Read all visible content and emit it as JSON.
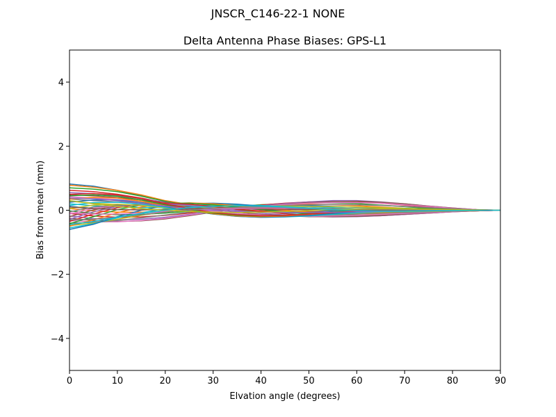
{
  "suptitle": "JNSCR_C146-22-1 NONE",
  "chart_data": {
    "type": "line",
    "title": "Delta Antenna Phase Biases: GPS-L1",
    "xlabel": "Elvation angle (degrees)",
    "ylabel": "Bias from mean (mm)",
    "xlim": [
      0,
      90
    ],
    "ylim": [
      -5,
      5
    ],
    "xticks": [
      "0",
      "10",
      "20",
      "30",
      "40",
      "50",
      "60",
      "70",
      "80",
      "90"
    ],
    "yticks": [
      "−4",
      "−2",
      "0",
      "2",
      "4"
    ],
    "ytick_values": [
      -4,
      -2,
      0,
      2,
      4
    ],
    "grid": false,
    "x": [
      0,
      5,
      10,
      15,
      20,
      25,
      30,
      35,
      40,
      45,
      50,
      55,
      60,
      65,
      70,
      75,
      80,
      85,
      90
    ],
    "colors": [
      "#1f77b4",
      "#ff7f0e",
      "#2ca02c",
      "#d62728",
      "#9467bd",
      "#8c564b",
      "#e377c2",
      "#7f7f7f",
      "#bcbd22",
      "#17becf"
    ],
    "series": [
      {
        "values": [
          0.82,
          0.75,
          0.62,
          0.45,
          0.28,
          0.15,
          0.05,
          0.0,
          -0.05,
          -0.08,
          -0.1,
          -0.12,
          -0.12,
          -0.1,
          -0.08,
          -0.06,
          -0.04,
          -0.02,
          0.0
        ]
      },
      {
        "values": [
          0.78,
          0.72,
          0.62,
          0.48,
          0.3,
          0.18,
          0.08,
          0.02,
          -0.03,
          -0.06,
          -0.08,
          -0.09,
          -0.09,
          -0.08,
          -0.06,
          -0.04,
          -0.03,
          -0.01,
          0.0
        ]
      },
      {
        "values": [
          0.7,
          0.66,
          0.58,
          0.44,
          0.28,
          0.15,
          0.06,
          0.0,
          -0.04,
          -0.07,
          -0.09,
          -0.1,
          -0.1,
          -0.09,
          -0.07,
          -0.05,
          -0.03,
          -0.01,
          0.0
        ]
      },
      {
        "values": [
          0.62,
          0.58,
          0.5,
          0.38,
          0.24,
          0.14,
          0.06,
          0.02,
          -0.02,
          -0.05,
          -0.08,
          -0.1,
          -0.11,
          -0.1,
          -0.08,
          -0.06,
          -0.04,
          -0.02,
          0.0
        ]
      },
      {
        "values": [
          0.55,
          0.52,
          0.46,
          0.36,
          0.25,
          0.16,
          0.1,
          0.06,
          0.02,
          -0.02,
          -0.05,
          -0.07,
          -0.08,
          -0.07,
          -0.06,
          -0.05,
          -0.03,
          -0.01,
          0.0
        ]
      },
      {
        "values": [
          0.48,
          0.45,
          0.4,
          0.32,
          0.24,
          0.17,
          0.12,
          0.08,
          0.04,
          0.0,
          -0.04,
          -0.06,
          -0.07,
          -0.07,
          -0.06,
          -0.04,
          -0.03,
          -0.01,
          0.0
        ]
      },
      {
        "values": [
          0.42,
          0.38,
          0.33,
          0.28,
          0.22,
          0.17,
          0.14,
          0.11,
          0.08,
          0.04,
          0.0,
          -0.03,
          -0.05,
          -0.05,
          -0.05,
          -0.04,
          -0.02,
          -0.01,
          0.0
        ]
      },
      {
        "values": [
          0.35,
          0.3,
          0.26,
          0.23,
          0.2,
          0.17,
          0.15,
          0.13,
          0.1,
          0.07,
          0.03,
          0.0,
          -0.02,
          -0.03,
          -0.03,
          -0.02,
          -0.02,
          -0.01,
          0.0
        ]
      },
      {
        "values": [
          0.28,
          0.22,
          0.18,
          0.16,
          0.15,
          0.15,
          0.15,
          0.14,
          0.12,
          0.1,
          0.07,
          0.04,
          0.01,
          -0.01,
          -0.02,
          -0.02,
          -0.01,
          -0.01,
          0.0
        ]
      },
      {
        "values": [
          0.2,
          0.14,
          0.1,
          0.08,
          0.09,
          0.11,
          0.13,
          0.14,
          0.14,
          0.13,
          0.11,
          0.08,
          0.05,
          0.02,
          0.0,
          -0.01,
          -0.01,
          0.0,
          0.0
        ]
      },
      {
        "values": [
          0.12,
          0.06,
          0.02,
          0.01,
          0.03,
          0.07,
          0.11,
          0.14,
          0.16,
          0.16,
          0.15,
          0.12,
          0.09,
          0.06,
          0.03,
          0.01,
          0.0,
          0.0,
          0.0
        ]
      },
      {
        "values": [
          0.05,
          -0.02,
          -0.06,
          -0.06,
          -0.03,
          0.02,
          0.08,
          0.13,
          0.17,
          0.19,
          0.19,
          0.17,
          0.14,
          0.1,
          0.06,
          0.03,
          0.01,
          0.0,
          0.0
        ]
      },
      {
        "values": [
          -0.02,
          -0.1,
          -0.14,
          -0.13,
          -0.09,
          -0.03,
          0.04,
          0.11,
          0.17,
          0.21,
          0.23,
          0.23,
          0.21,
          0.16,
          0.11,
          0.06,
          0.03,
          0.01,
          0.0
        ]
      },
      {
        "values": [
          -0.1,
          -0.18,
          -0.22,
          -0.21,
          -0.16,
          -0.09,
          0.0,
          0.09,
          0.16,
          0.22,
          0.26,
          0.28,
          0.27,
          0.22,
          0.16,
          0.1,
          0.05,
          0.02,
          0.0
        ]
      },
      {
        "values": [
          -0.18,
          -0.26,
          -0.3,
          -0.28,
          -0.22,
          -0.13,
          -0.03,
          0.06,
          0.14,
          0.21,
          0.26,
          0.3,
          0.3,
          0.26,
          0.2,
          0.13,
          0.07,
          0.02,
          0.0
        ]
      },
      {
        "values": [
          -0.25,
          -0.32,
          -0.35,
          -0.33,
          -0.27,
          -0.17,
          -0.06,
          0.04,
          0.12,
          0.19,
          0.24,
          0.27,
          0.28,
          0.25,
          0.2,
          0.13,
          0.07,
          0.02,
          0.0
        ]
      },
      {
        "values": [
          -0.32,
          -0.36,
          -0.36,
          -0.32,
          -0.25,
          -0.15,
          -0.05,
          0.05,
          0.12,
          0.18,
          0.22,
          0.24,
          0.24,
          0.22,
          0.17,
          0.12,
          0.06,
          0.02,
          0.0
        ]
      },
      {
        "values": [
          -0.4,
          -0.38,
          -0.32,
          -0.24,
          -0.15,
          -0.06,
          0.02,
          0.08,
          0.12,
          0.15,
          0.17,
          0.18,
          0.17,
          0.15,
          0.12,
          0.08,
          0.04,
          0.01,
          0.0
        ]
      },
      {
        "values": [
          -0.48,
          -0.4,
          -0.28,
          -0.16,
          -0.05,
          0.04,
          0.1,
          0.13,
          0.14,
          0.13,
          0.12,
          0.11,
          0.1,
          0.08,
          0.06,
          0.04,
          0.02,
          0.01,
          0.0
        ]
      },
      {
        "values": [
          -0.55,
          -0.42,
          -0.24,
          -0.08,
          0.05,
          0.13,
          0.17,
          0.17,
          0.15,
          0.11,
          0.07,
          0.04,
          0.02,
          0.01,
          0.0,
          0.0,
          0.0,
          0.0,
          0.0
        ]
      },
      {
        "values": [
          -0.6,
          -0.44,
          -0.2,
          0.0,
          0.14,
          0.21,
          0.22,
          0.19,
          0.13,
          0.07,
          0.01,
          -0.03,
          -0.05,
          -0.05,
          -0.04,
          -0.03,
          -0.02,
          -0.01,
          0.0
        ]
      },
      {
        "values": [
          -0.5,
          -0.3,
          -0.08,
          0.1,
          0.2,
          0.23,
          0.2,
          0.14,
          0.07,
          0.0,
          -0.06,
          -0.1,
          -0.12,
          -0.11,
          -0.09,
          -0.06,
          -0.03,
          -0.01,
          0.0
        ]
      },
      {
        "values": [
          -0.42,
          -0.2,
          0.02,
          0.16,
          0.22,
          0.22,
          0.17,
          0.1,
          0.02,
          -0.05,
          -0.11,
          -0.15,
          -0.16,
          -0.15,
          -0.12,
          -0.08,
          -0.04,
          -0.01,
          0.0
        ]
      },
      {
        "values": [
          -0.35,
          -0.12,
          0.08,
          0.19,
          0.22,
          0.19,
          0.12,
          0.04,
          -0.04,
          -0.11,
          -0.16,
          -0.19,
          -0.19,
          -0.17,
          -0.13,
          -0.09,
          -0.05,
          -0.02,
          0.0
        ]
      },
      {
        "values": [
          -0.28,
          -0.05,
          0.12,
          0.2,
          0.2,
          0.15,
          0.07,
          -0.01,
          -0.09,
          -0.15,
          -0.19,
          -0.21,
          -0.2,
          -0.17,
          -0.13,
          -0.09,
          -0.05,
          -0.02,
          0.0
        ]
      },
      {
        "values": [
          -0.2,
          0.01,
          0.14,
          0.18,
          0.16,
          0.1,
          0.02,
          -0.06,
          -0.13,
          -0.17,
          -0.2,
          -0.2,
          -0.19,
          -0.16,
          -0.12,
          -0.08,
          -0.04,
          -0.02,
          0.0
        ]
      },
      {
        "values": [
          -0.12,
          0.06,
          0.15,
          0.16,
          0.12,
          0.05,
          -0.03,
          -0.1,
          -0.15,
          -0.18,
          -0.19,
          -0.18,
          -0.16,
          -0.13,
          -0.1,
          -0.07,
          -0.04,
          -0.01,
          0.0
        ]
      },
      {
        "values": [
          -0.05,
          0.1,
          0.16,
          0.14,
          0.08,
          0.01,
          -0.07,
          -0.13,
          -0.17,
          -0.18,
          -0.17,
          -0.15,
          -0.12,
          -0.09,
          -0.07,
          -0.05,
          -0.03,
          -0.01,
          0.0
        ]
      },
      {
        "values": [
          0.05,
          0.16,
          0.19,
          0.15,
          0.07,
          -0.02,
          -0.1,
          -0.16,
          -0.19,
          -0.19,
          -0.17,
          -0.13,
          -0.09,
          -0.06,
          -0.04,
          -0.03,
          -0.02,
          -0.01,
          0.0
        ]
      },
      {
        "values": [
          0.15,
          0.24,
          0.25,
          0.19,
          0.09,
          -0.02,
          -0.12,
          -0.19,
          -0.22,
          -0.21,
          -0.18,
          -0.13,
          -0.08,
          -0.04,
          -0.02,
          -0.01,
          -0.01,
          0.0,
          0.0
        ]
      },
      {
        "values": [
          0.25,
          0.32,
          0.32,
          0.24,
          0.12,
          -0.01,
          -0.12,
          -0.19,
          -0.22,
          -0.2,
          -0.16,
          -0.1,
          -0.05,
          -0.01,
          0.01,
          0.01,
          0.01,
          0.0,
          0.0
        ]
      },
      {
        "values": [
          0.35,
          0.4,
          0.38,
          0.28,
          0.14,
          0.0,
          -0.11,
          -0.18,
          -0.2,
          -0.18,
          -0.13,
          -0.07,
          -0.02,
          0.02,
          0.03,
          0.03,
          0.02,
          0.01,
          0.0
        ]
      },
      {
        "values": [
          0.45,
          0.48,
          0.44,
          0.32,
          0.17,
          0.02,
          -0.09,
          -0.16,
          -0.18,
          -0.16,
          -0.11,
          -0.05,
          0.0,
          0.04,
          0.05,
          0.04,
          0.03,
          0.01,
          0.0
        ]
      },
      {
        "values": [
          0.5,
          0.52,
          0.48,
          0.36,
          0.2,
          0.05,
          -0.07,
          -0.14,
          -0.17,
          -0.16,
          -0.12,
          -0.07,
          -0.02,
          0.02,
          0.03,
          0.03,
          0.02,
          0.01,
          0.0
        ]
      },
      {
        "values": [
          0.38,
          0.36,
          0.3,
          0.22,
          0.13,
          0.05,
          0.0,
          -0.04,
          -0.06,
          -0.07,
          -0.07,
          -0.06,
          -0.05,
          -0.04,
          -0.03,
          -0.02,
          -0.01,
          0.0,
          0.0
        ]
      },
      {
        "values": [
          0.1,
          0.05,
          0.02,
          0.01,
          0.02,
          0.04,
          0.05,
          0.05,
          0.04,
          0.03,
          0.02,
          0.01,
          0.0,
          -0.01,
          -0.01,
          -0.01,
          0.0,
          0.0,
          0.0
        ]
      },
      {
        "values": [
          -0.08,
          -0.12,
          -0.12,
          -0.09,
          -0.04,
          0.01,
          0.04,
          0.06,
          0.07,
          0.07,
          0.06,
          0.05,
          0.04,
          0.03,
          0.02,
          0.01,
          0.01,
          0.0,
          0.0
        ]
      },
      {
        "values": [
          -0.3,
          -0.28,
          -0.22,
          -0.14,
          -0.06,
          0.01,
          0.06,
          0.09,
          0.1,
          0.09,
          0.07,
          0.05,
          0.03,
          0.02,
          0.01,
          0.01,
          0.0,
          0.0,
          0.0
        ]
      },
      {
        "values": [
          0.3,
          0.2,
          0.12,
          0.05,
          0.0,
          -0.04,
          -0.06,
          -0.07,
          -0.06,
          -0.04,
          -0.01,
          0.02,
          0.04,
          0.05,
          0.04,
          0.03,
          0.02,
          0.01,
          0.0
        ]
      },
      {
        "values": [
          -0.45,
          -0.35,
          -0.22,
          -0.1,
          0.0,
          0.08,
          0.12,
          0.14,
          0.13,
          0.1,
          0.06,
          0.02,
          -0.01,
          -0.03,
          -0.03,
          -0.02,
          -0.01,
          0.0,
          0.0
        ]
      }
    ]
  }
}
